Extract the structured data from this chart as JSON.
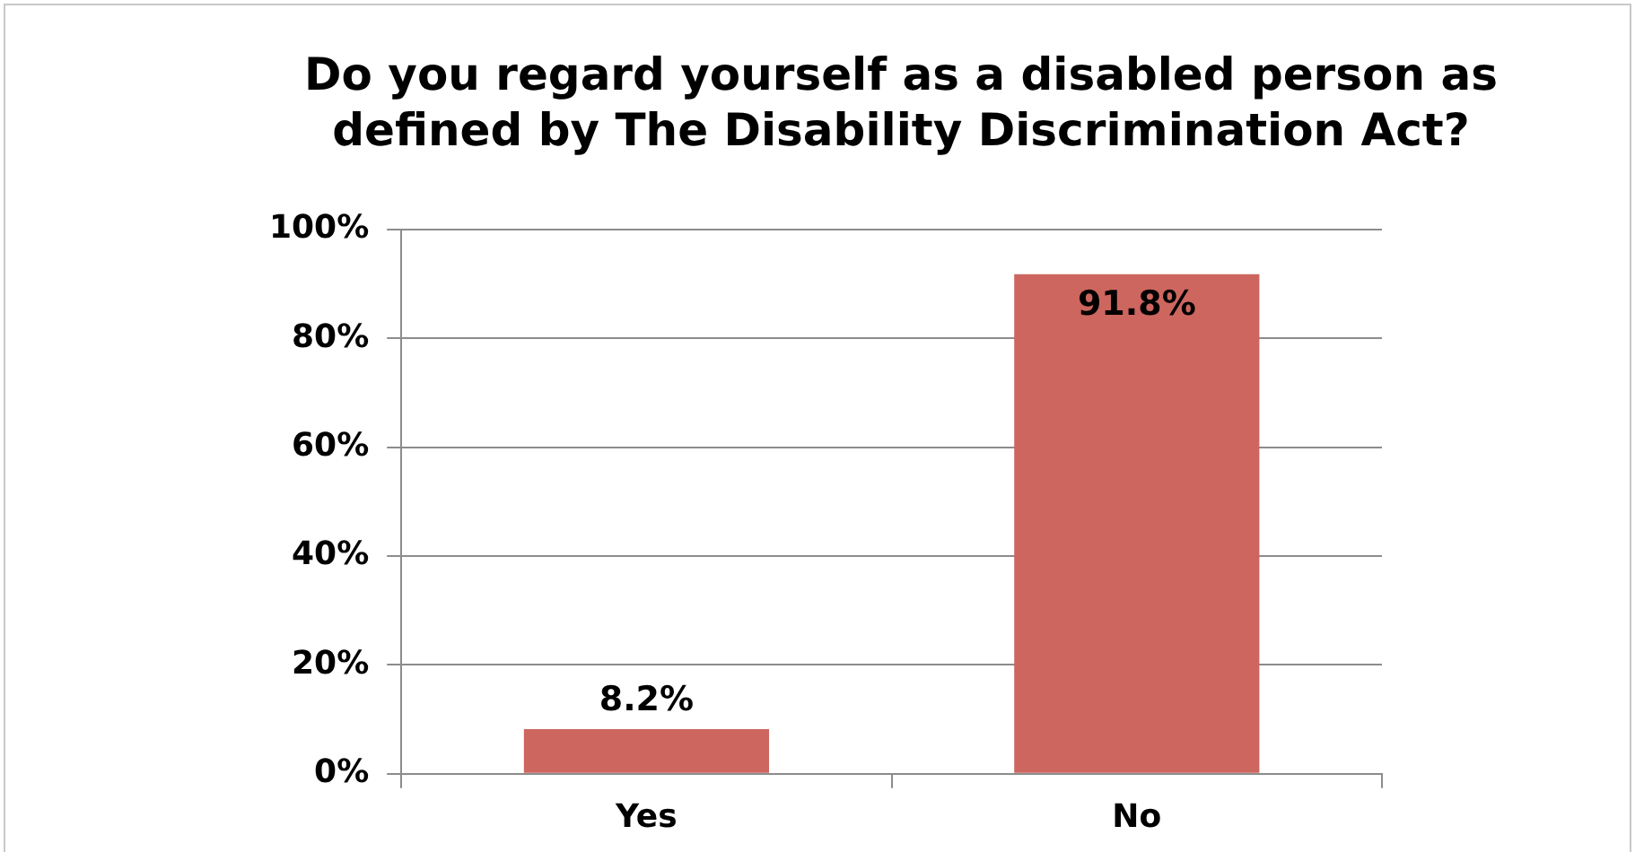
{
  "chart_data": {
    "type": "bar",
    "title": "Do you regard yourself as a disabled person as defined by The Disability Discrimination Act?",
    "categories": [
      "Yes",
      "No"
    ],
    "values": [
      8.2,
      91.8
    ],
    "value_labels": [
      "8.2%",
      "91.8%"
    ],
    "color": "#cd665f",
    "ylim": [
      0,
      100
    ],
    "yticks": [
      {
        "value": 0,
        "label": "0%"
      },
      {
        "value": 20,
        "label": "20%"
      },
      {
        "value": 40,
        "label": "40%"
      },
      {
        "value": 60,
        "label": "60%"
      },
      {
        "value": 80,
        "label": "80%"
      },
      {
        "value": 100,
        "label": "100%"
      }
    ],
    "grid": "y",
    "legend": false
  }
}
